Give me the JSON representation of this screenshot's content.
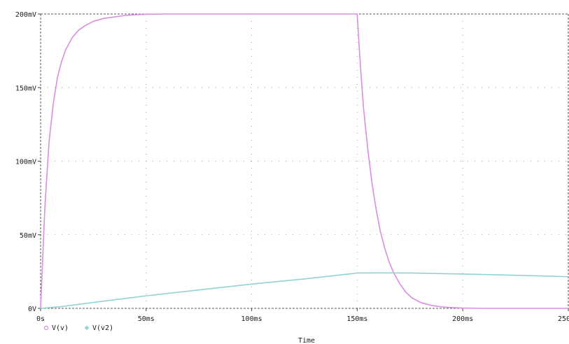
{
  "colors": {
    "series_v": "#d98ee0",
    "series_v2": "#8fd3d3"
  },
  "chart_data": {
    "type": "line",
    "title": "",
    "xlabel": "Time",
    "ylabel": "",
    "xlim": [
      0,
      250
    ],
    "ylim": [
      0,
      200
    ],
    "x_ticks": [
      {
        "value": 0,
        "label": "0s"
      },
      {
        "value": 50,
        "label": "50ms"
      },
      {
        "value": 100,
        "label": "100ms"
      },
      {
        "value": 150,
        "label": "150ms"
      },
      {
        "value": 200,
        "label": "200ms"
      },
      {
        "value": 250,
        "label": "250ms"
      }
    ],
    "y_ticks": [
      {
        "value": 0,
        "label": "0V"
      },
      {
        "value": 50,
        "label": "50mV"
      },
      {
        "value": 100,
        "label": "100mV"
      },
      {
        "value": 150,
        "label": "150mV"
      },
      {
        "value": 200,
        "label": "200mV"
      }
    ],
    "grid": true,
    "legend_position": "bottom-left",
    "series": [
      {
        "name": "V(v)",
        "color": "#d98ee0",
        "marker": "circle",
        "x": [
          0,
          2,
          4,
          6,
          8,
          10,
          12,
          15,
          18,
          21,
          25,
          30,
          35,
          40,
          45,
          50,
          60,
          80,
          100,
          120,
          140,
          150,
          151,
          152,
          153,
          155,
          157,
          159,
          161,
          163,
          165,
          167,
          170,
          173,
          176,
          180,
          185,
          190,
          195,
          200,
          210,
          220,
          250
        ],
        "y": [
          0,
          68,
          113,
          139,
          157,
          168,
          176,
          184,
          189,
          192,
          195,
          197,
          198,
          199,
          199.5,
          199.8,
          200,
          200,
          200,
          200,
          200,
          200,
          176,
          155,
          136,
          108,
          85,
          67,
          52,
          41,
          32,
          25,
          17,
          11,
          7,
          4,
          2,
          1,
          0.5,
          0.2,
          0,
          0,
          0
        ]
      },
      {
        "name": "V(v2)",
        "color": "#8fd3d3",
        "marker": "diamond",
        "x": [
          0,
          10,
          25,
          50,
          75,
          100,
          125,
          150,
          160,
          175,
          200,
          225,
          250
        ],
        "y": [
          0,
          1.2,
          4,
          8.5,
          12.5,
          16.5,
          20,
          24,
          24.1,
          24,
          23.3,
          22.5,
          21.5
        ]
      }
    ]
  }
}
